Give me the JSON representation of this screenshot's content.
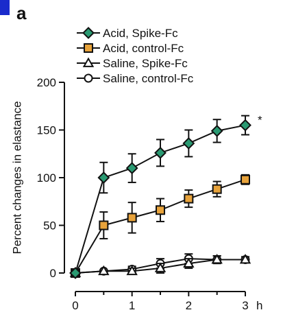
{
  "panel_label": "a",
  "chart_data": {
    "type": "line",
    "xlabel": "h",
    "ylabel": "Percent changes in elastance",
    "xlim": [
      0,
      3
    ],
    "ylim": [
      0,
      200
    ],
    "x_ticks": [
      0,
      1,
      2,
      3
    ],
    "y_ticks": [
      0,
      50,
      100,
      150,
      200
    ],
    "grid": false,
    "legend_position": "top",
    "annotation": "*",
    "series": [
      {
        "name": "Acid, Spike-Fc",
        "marker": "diamond",
        "fill": "#2a9a72",
        "x": [
          0,
          0.5,
          1,
          1.5,
          2,
          2.5,
          3
        ],
        "values": [
          0,
          100,
          110,
          126,
          136,
          149,
          155
        ],
        "errors": [
          3,
          16,
          15,
          14,
          14,
          12,
          10
        ]
      },
      {
        "name": "Acid, control-Fc",
        "marker": "square",
        "fill": "#e8a33b",
        "x": [
          0,
          0.5,
          1,
          1.5,
          2,
          2.5,
          3
        ],
        "values": [
          0,
          50,
          58,
          66,
          78,
          88,
          98
        ],
        "errors": [
          3,
          14,
          16,
          12,
          9,
          8,
          5
        ]
      },
      {
        "name": "Saline, Spike-Fc",
        "marker": "triangle",
        "fill": "#ffffff",
        "x": [
          0,
          0.5,
          1,
          1.5,
          2,
          2.5,
          3
        ],
        "values": [
          0,
          2,
          2,
          5,
          10,
          14,
          14
        ],
        "errors": [
          2,
          2,
          3,
          5,
          5,
          4,
          3
        ]
      },
      {
        "name": "Saline, control-Fc",
        "marker": "circle",
        "fill": "#ffffff",
        "x": [
          0,
          0.5,
          1,
          1.5,
          2,
          2.5,
          3
        ],
        "values": [
          0,
          2,
          4,
          10,
          15,
          14,
          14
        ],
        "errors": [
          2,
          2,
          3,
          5,
          5,
          4,
          3
        ]
      }
    ]
  }
}
